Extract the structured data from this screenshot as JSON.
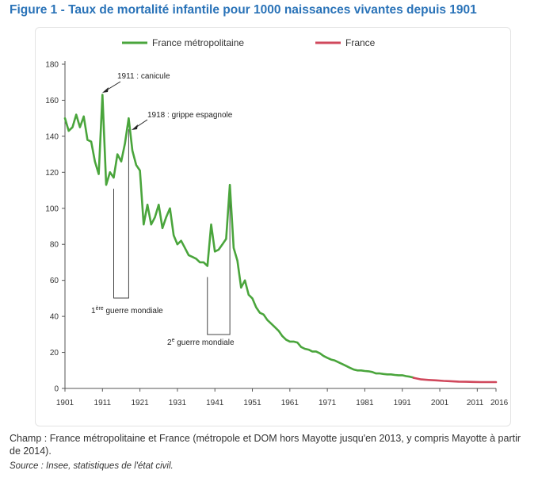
{
  "figure_title": "Figure 1 - Taux de mortalité infantile pour 1000 naissances vivantes depuis 1901",
  "notes": {
    "champ": "Champ : France métropolitaine et France (métropole et DOM hors Mayotte jusqu'en 2013, y compris Mayotte à partir de 2014).",
    "source": "Source : Insee, statistiques de l'état civil."
  },
  "colors": {
    "title": "#2a73b8",
    "series_metro": "#4aa53c",
    "series_france": "#d0485c"
  },
  "chart_data": {
    "type": "line",
    "ylim": [
      0,
      180
    ],
    "xlim": [
      1901,
      2016
    ],
    "y_ticks": [
      0,
      20,
      40,
      60,
      80,
      100,
      120,
      140,
      160,
      180
    ],
    "x_ticks": [
      1901,
      1911,
      1921,
      1931,
      1941,
      1951,
      1961,
      1971,
      1981,
      1991,
      2001,
      2011,
      2016
    ],
    "legend": [
      "France métropolitaine",
      "France"
    ],
    "legend_position": "top",
    "grid": false,
    "series": [
      {
        "name": "France métropolitaine",
        "x": [
          1901,
          1902,
          1903,
          1904,
          1905,
          1906,
          1907,
          1908,
          1909,
          1910,
          1911,
          1912,
          1913,
          1914,
          1915,
          1916,
          1917,
          1918,
          1919,
          1920,
          1921,
          1922,
          1923,
          1924,
          1925,
          1926,
          1927,
          1928,
          1929,
          1930,
          1931,
          1932,
          1933,
          1934,
          1935,
          1936,
          1937,
          1938,
          1939,
          1940,
          1941,
          1942,
          1943,
          1944,
          1945,
          1946,
          1947,
          1948,
          1949,
          1950,
          1951,
          1952,
          1953,
          1954,
          1955,
          1956,
          1957,
          1958,
          1959,
          1960,
          1961,
          1962,
          1963,
          1964,
          1965,
          1966,
          1967,
          1968,
          1969,
          1970,
          1971,
          1972,
          1973,
          1974,
          1975,
          1976,
          1977,
          1978,
          1979,
          1980,
          1981,
          1982,
          1983,
          1984,
          1985,
          1986,
          1987,
          1988,
          1989,
          1990,
          1991,
          1992,
          1993,
          1994
        ],
        "values": [
          150,
          143,
          145,
          152,
          145,
          151,
          138,
          137,
          126,
          119,
          163,
          113,
          120,
          117,
          130,
          126,
          136,
          150,
          132,
          124,
          121,
          91,
          102,
          91,
          95,
          102,
          89,
          95,
          100,
          85,
          80,
          82,
          78,
          74,
          73,
          72,
          70,
          70,
          68,
          91,
          76,
          77,
          80,
          83,
          113,
          78,
          71,
          56,
          60,
          52,
          50,
          45,
          42,
          41,
          38,
          36,
          34,
          32,
          29,
          27,
          26,
          26,
          25.5,
          23,
          22,
          21.5,
          20.5,
          20.5,
          19.5,
          18,
          17,
          16,
          15.5,
          14.5,
          13.5,
          12.5,
          11.5,
          10.5,
          10,
          10,
          9.7,
          9.5,
          9.1,
          8.3,
          8.3,
          8,
          7.8,
          7.8,
          7.5,
          7.3,
          7.3,
          6.8,
          6.5,
          6
        ]
      },
      {
        "name": "France",
        "x": [
          1994,
          1996,
          1998,
          2000,
          2002,
          2004,
          2006,
          2008,
          2010,
          2012,
          2014,
          2016
        ],
        "values": [
          5.9,
          5.0,
          4.7,
          4.5,
          4.2,
          4.0,
          3.8,
          3.7,
          3.6,
          3.5,
          3.5,
          3.5
        ]
      }
    ],
    "annotations": [
      {
        "label": "1911 : canicule"
      },
      {
        "label": "1918 : grippe espagnole"
      },
      {
        "label": "1ère guerre mondiale",
        "span": [
          1914,
          1918
        ]
      },
      {
        "label": "2e guerre mondiale",
        "span": [
          1939,
          1945
        ]
      }
    ]
  }
}
